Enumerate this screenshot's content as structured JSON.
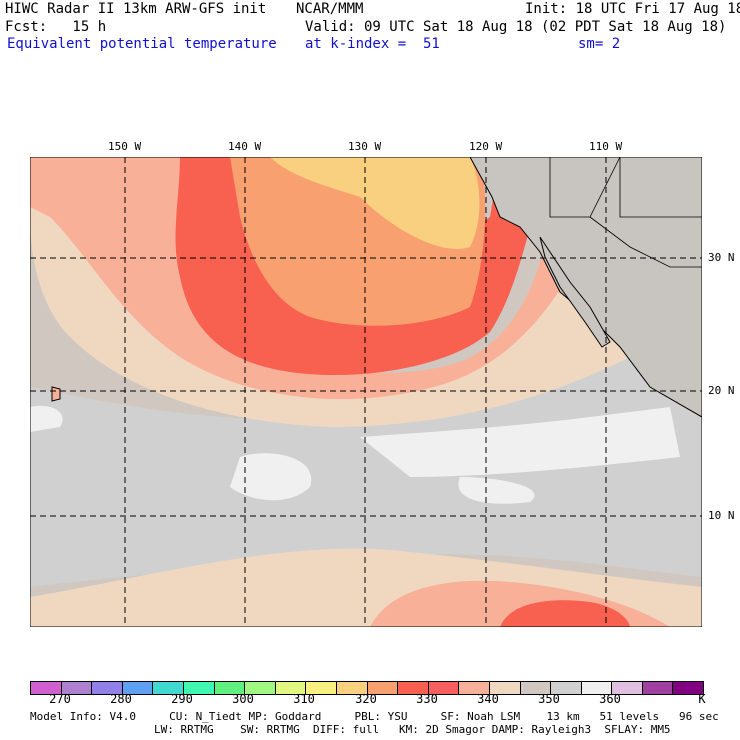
{
  "header": {
    "title": "HIWC Radar II 13km ARW-GFS init",
    "org": "NCAR/MMM",
    "init": "Init: 18 UTC Fri 17 Aug 18",
    "fcst": "Fcst:   15 h",
    "valid": "Valid: 09 UTC Sat 18 Aug 18 (02 PDT Sat 18 Aug 18)",
    "field": "Equivalent potential temperature",
    "level": "at k-index =  51",
    "smooth": "sm= 2"
  },
  "map": {
    "lon_labels": [
      "150 W",
      "140 W",
      "130 W",
      "120 W",
      "110 W"
    ],
    "lat_labels": [
      "30 N",
      "20 N",
      "10 N"
    ]
  },
  "colorbar": {
    "colors": [
      "#d060d0",
      "#b080d0",
      "#9080e8",
      "#60a0f0",
      "#40d8d0",
      "#40f8b0",
      "#60f080",
      "#a0f880",
      "#e0f880",
      "#f8f080",
      "#f8d080",
      "#f8a070",
      "#f86050",
      "#f86060",
      "#f8b098",
      "#f0d8c0",
      "#d0c8c0",
      "#d0d0d0",
      "#f0f0f0",
      "#e0c0e0",
      "#a040a0",
      "#800080"
    ],
    "labels": [
      "270",
      "280",
      "290",
      "300",
      "310",
      "320",
      "330",
      "340",
      "350",
      "360"
    ],
    "unit": "K"
  },
  "footer": {
    "line1": "Model Info: V4.0     CU: N_Tiedt MP: Goddard     PBL: YSU     SF: Noah LSM    13 km   51 levels   96 sec",
    "line2": "LW: RRTMG    SW: RRTMG  DIFF: full   KM: 2D Smagor DAMP: Rayleigh3  SFLAY: MM5"
  }
}
